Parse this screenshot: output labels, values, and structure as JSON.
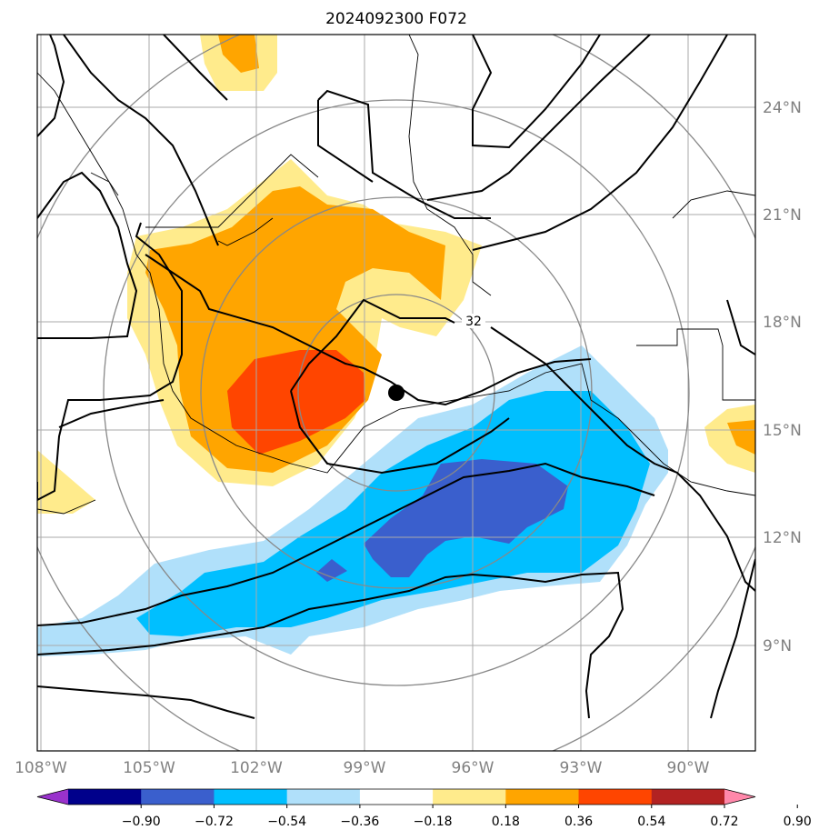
{
  "title": "2024092300 F072",
  "longitude_labels": [
    "108°W",
    "105°W",
    "102°W",
    "99°W",
    "96°W",
    "93°W",
    "90°W"
  ],
  "latitude_labels": [
    "24°N",
    "21°N",
    "18°N",
    "15°N",
    "12°N",
    "9°N"
  ],
  "colorbar": {
    "ticks": [
      "−0.90",
      "−0.72",
      "−0.54",
      "−0.36",
      "−0.18",
      "0.18",
      "0.36",
      "0.54",
      "0.72",
      "0.90"
    ],
    "colors": [
      "#9932cc",
      "#00008b",
      "#3a5fcd",
      "#00bfff",
      "#b0e0fa",
      "#ffffff",
      "#ffeb8c",
      "#ffa500",
      "#ff4500",
      "#b22222",
      "#ff88aa"
    ]
  },
  "contour_label": "32",
  "colors": {
    "positive_light": "#ffeb8c",
    "positive_mid": "#ffa500",
    "positive_high": "#ff4500",
    "negative_light": "#b0e0fa",
    "negative_mid": "#00bfff",
    "negative_high": "#3a5fcd",
    "gridline": "#aaaaaa",
    "range_ring": "#888888",
    "coastline": "#000000"
  },
  "storm_center_marker": "filled-black-circle"
}
